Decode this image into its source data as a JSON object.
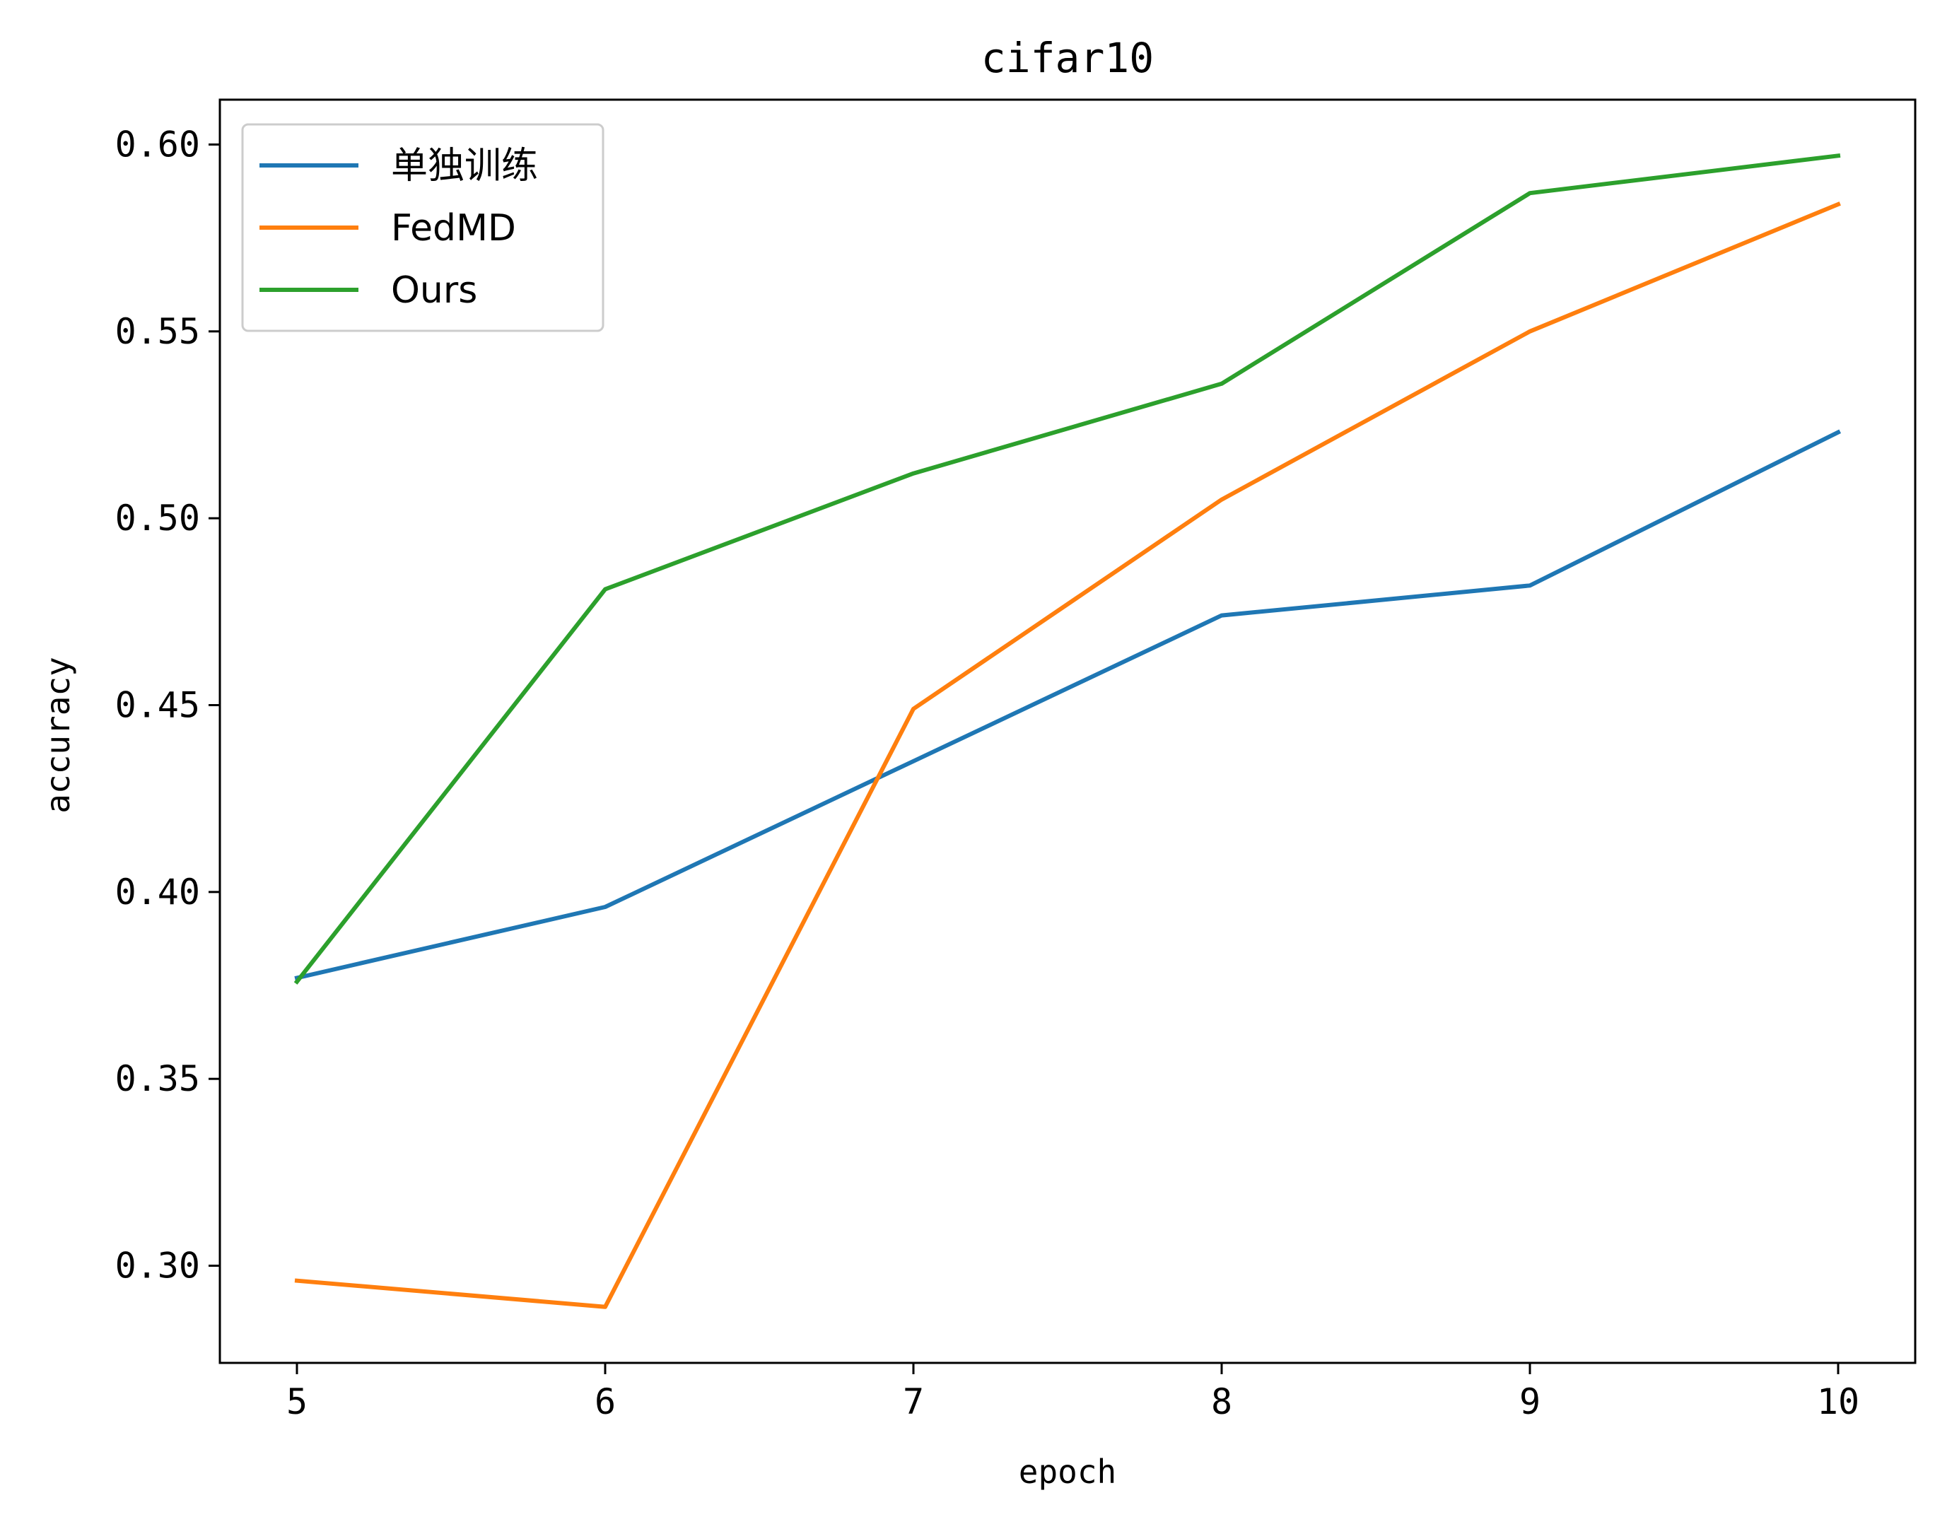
{
  "chart_data": {
    "type": "line",
    "title": "cifar10",
    "xlabel": "epoch",
    "ylabel": "accuracy",
    "x": [
      5,
      6,
      7,
      8,
      9,
      10
    ],
    "xticks": [
      "5",
      "6",
      "7",
      "8",
      "9",
      "10"
    ],
    "yticks": [
      "0.30",
      "0.35",
      "0.40",
      "0.45",
      "0.50",
      "0.55",
      "0.60"
    ],
    "xlim": [
      4.75,
      10.25
    ],
    "ylim": [
      0.274,
      0.612
    ],
    "grid": false,
    "legend_position": "top-left",
    "series": [
      {
        "name": "单独训练",
        "color": "#1f77b4",
        "values": [
          0.377,
          0.396,
          0.435,
          0.474,
          0.482,
          0.523
        ]
      },
      {
        "name": "FedMD",
        "color": "#ff7f0e",
        "values": [
          0.296,
          0.289,
          0.449,
          0.505,
          0.55,
          0.584
        ]
      },
      {
        "name": "Ours",
        "color": "#2ca02c",
        "values": [
          0.376,
          0.481,
          0.512,
          0.536,
          0.587,
          0.597
        ]
      }
    ]
  }
}
